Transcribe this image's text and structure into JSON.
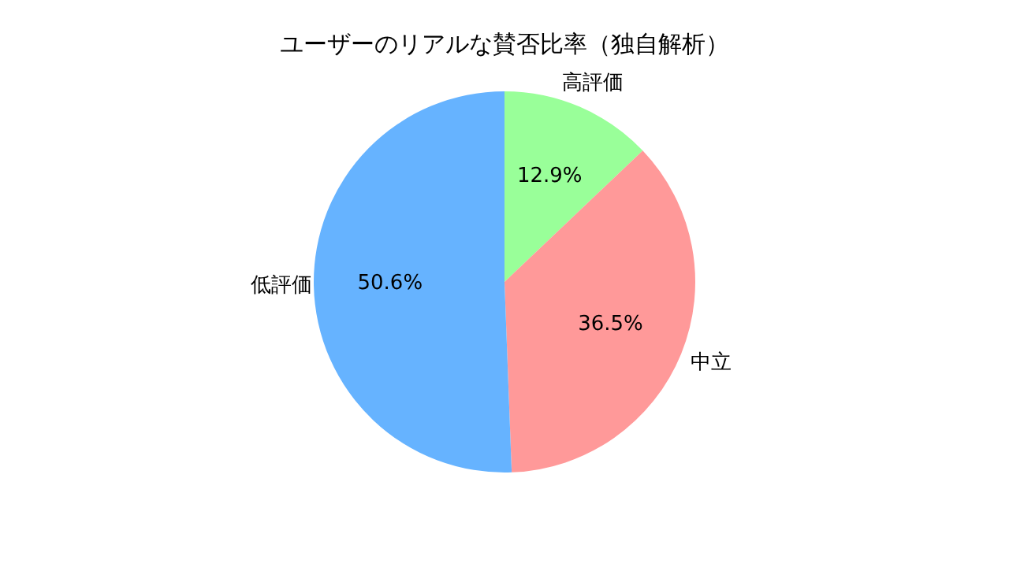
{
  "chart_data": {
    "type": "pie",
    "title": "ユーザーのリアルな賛否比率（独自解析）",
    "categories": [
      "高評価",
      "中立",
      "低評価"
    ],
    "values": [
      12.9,
      36.5,
      50.6
    ],
    "colors": [
      "#99ff99",
      "#ff9999",
      "#66b3ff"
    ],
    "value_labels": [
      "12.9%",
      "36.5%",
      "50.6%"
    ]
  }
}
